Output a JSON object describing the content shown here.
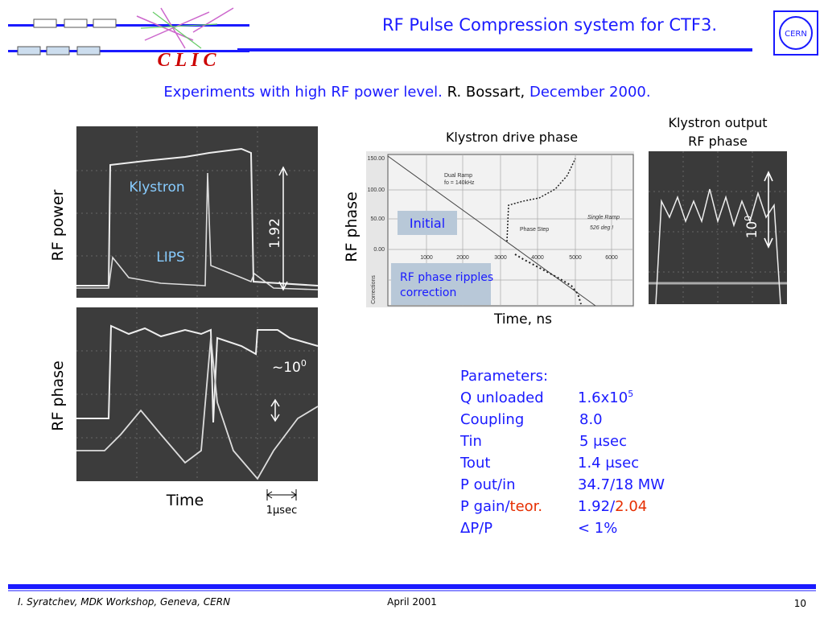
{
  "header": {
    "title": "RF Pulse Compression system for CTF3.",
    "logo": "C L I C",
    "cern": "CERN"
  },
  "subtitle": {
    "topic": "Experiments with high RF power level.",
    "author": "R. Bossart,",
    "date": "December 2000."
  },
  "scope_left": {
    "top_ylabel": "RF power",
    "klystron": "Klystron",
    "lips": "LIPS",
    "ratio": "1.92",
    "bottom_ylabel": "RF phase",
    "phase_amp": "~10",
    "phase_amp_sup": "0",
    "xlabel": "Time",
    "scale": "1",
    "scale_unit": "μsec"
  },
  "drive_phase": {
    "title": "Klystron drive phase",
    "ylabel": "RF phase",
    "xlabel": "Time, ns",
    "initial": "Initial",
    "correction": [
      "RF phase ripples",
      "correction"
    ],
    "yticks": [
      "150.00",
      "100.00",
      "50.00",
      "0.00"
    ],
    "xticks": [
      "1000",
      "2000",
      "3000",
      "4000",
      "5000",
      "6000"
    ],
    "notes": [
      "Dual Ramp",
      "fo = 140kHz",
      "Phase Step",
      "Single Ramp",
      "526 deg !",
      "Corrections"
    ]
  },
  "output_phase": {
    "title": [
      "Klystron output",
      "RF phase"
    ],
    "amp": "10",
    "amp_sup": "0"
  },
  "parameters": {
    "heading": "Parameters:",
    "rows": [
      [
        "Q unloaded",
        "1.6x10",
        "5"
      ],
      [
        "Coupling",
        "8.0"
      ],
      [
        "Tin",
        "5 μsec"
      ],
      [
        "Tout",
        "1.4 μsec"
      ],
      [
        "P out/in",
        "34.7/18 MW"
      ],
      [
        "P gain/",
        "teor.",
        "1.92/",
        "2.04"
      ],
      [
        "ΔP/P",
        "< 1%"
      ]
    ]
  },
  "footer": {
    "left": "I. Syratchev, MDK Workshop, Geneva, CERN",
    "center": "April 2001",
    "page": "10"
  }
}
